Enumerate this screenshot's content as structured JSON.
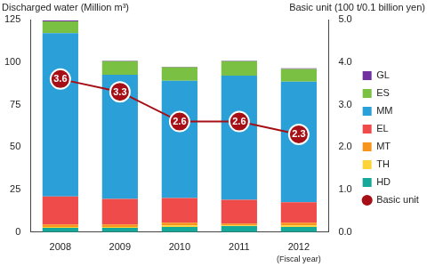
{
  "chart_data": {
    "type": "bar",
    "stacked": true,
    "grid": false,
    "legend": "right",
    "y_label": "Discharged water (Million m³)",
    "y2_label": "Basic unit (100 t/0.1 billion yen)",
    "annotations": [
      "(Fiscal year)"
    ],
    "categories": [
      "2008",
      "2009",
      "2010",
      "2011",
      "2012"
    ],
    "ylim": [
      0,
      125
    ],
    "yticks": [
      0,
      25,
      50,
      75,
      100,
      125
    ],
    "y2lim": [
      0,
      5
    ],
    "y2ticks": [
      {
        "value": 0,
        "label": "0.0"
      },
      {
        "value": 1,
        "label": "1.0"
      },
      {
        "value": 2,
        "label": "2.0"
      },
      {
        "value": 3,
        "label": "3.0"
      },
      {
        "value": 4,
        "label": "4.0"
      },
      {
        "value": 5,
        "label": "5.0"
      }
    ],
    "series": [
      {
        "name": "GL",
        "color": "#7030a0",
        "values": [
          0.5,
          0.3,
          0.3,
          0.3,
          0.3
        ]
      },
      {
        "name": "ES",
        "color": "#7ac143",
        "values": [
          7,
          8,
          8,
          8.5,
          7.5
        ]
      },
      {
        "name": "MM",
        "color": "#2a9fd8",
        "values": [
          96,
          73,
          69,
          73,
          71
        ]
      },
      {
        "name": "EL",
        "color": "#ef4b4b",
        "values": [
          16.5,
          15,
          14.5,
          14,
          12
        ]
      },
      {
        "name": "MT",
        "color": "#f7941d",
        "values": [
          1.5,
          1.5,
          1.5,
          1,
          1.5
        ]
      },
      {
        "name": "TH",
        "color": "#fdd33a",
        "values": [
          0.5,
          0.5,
          1,
          0.5,
          1
        ]
      },
      {
        "name": "HD",
        "color": "#16a899",
        "values": [
          2.5,
          2.5,
          3,
          3.5,
          3
        ]
      },
      {
        "name": "Basic unit",
        "type": "line",
        "axis": "y2",
        "color": "#a50f15",
        "marker": "circle",
        "line_style": "solid",
        "data_labels": true,
        "values": [
          3.6,
          3.3,
          2.6,
          2.6,
          2.3
        ]
      }
    ]
  }
}
